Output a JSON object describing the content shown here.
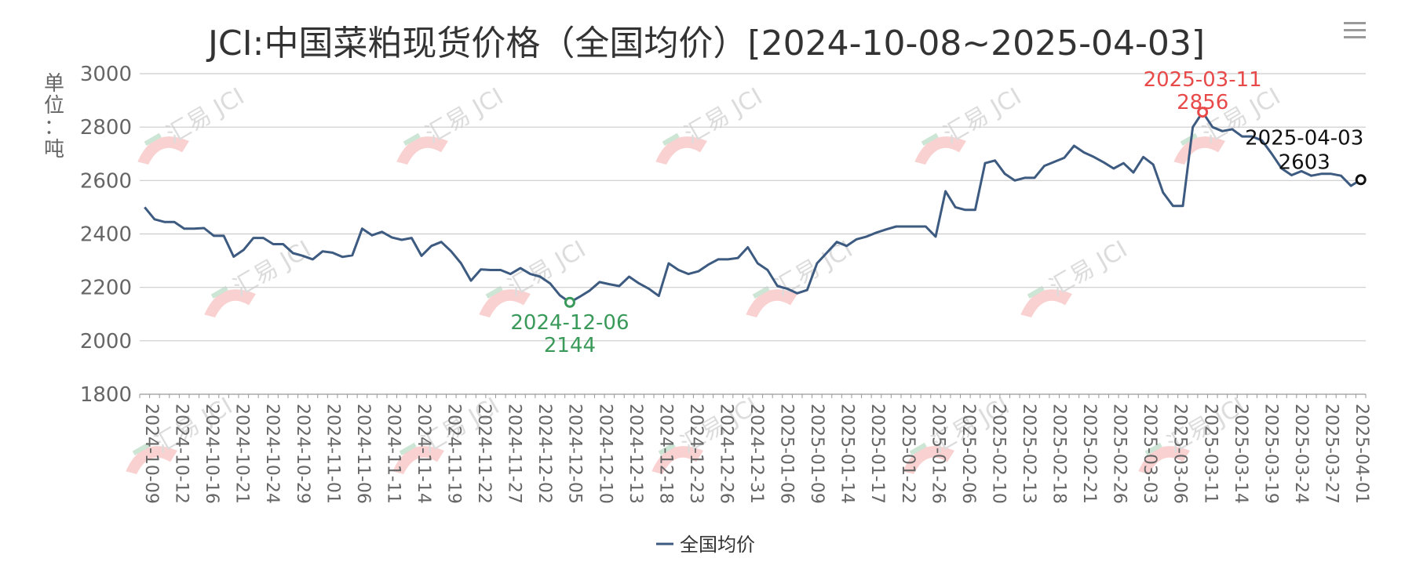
{
  "chart_data": {
    "type": "line",
    "title": "JCI:中国菜粕现货价格（全国均价）[2024-10-08~2025-04-03]",
    "ylabel": "单位：吨",
    "ylim": [
      1800,
      3000
    ],
    "yticks": [
      1800,
      2000,
      2200,
      2400,
      2600,
      2800,
      3000
    ],
    "grid": true,
    "legend_position": "bottom-center",
    "x_tick_labels": [
      "2024-10-09",
      "2024-10-12",
      "2024-10-16",
      "2024-10-21",
      "2024-10-24",
      "2024-10-29",
      "2024-11-01",
      "2024-11-06",
      "2024-11-11",
      "2024-11-14",
      "2024-11-19",
      "2024-11-22",
      "2024-11-27",
      "2024-12-02",
      "2024-12-05",
      "2024-12-10",
      "2024-12-13",
      "2024-12-18",
      "2024-12-23",
      "2024-12-26",
      "2024-12-31",
      "2025-01-06",
      "2025-01-09",
      "2025-01-14",
      "2025-01-17",
      "2025-01-22",
      "2025-01-26",
      "2025-02-06",
      "2025-02-10",
      "2025-02-13",
      "2025-02-18",
      "2025-02-21",
      "2025-02-26",
      "2025-03-03",
      "2025-03-06",
      "2025-03-11",
      "2025-03-14",
      "2025-03-19",
      "2025-03-24",
      "2025-03-27",
      "2025-04-01"
    ],
    "series": [
      {
        "name": "全国均价",
        "color": "#3d5a80",
        "values": [
          2500,
          2455,
          2445,
          2445,
          2420,
          2420,
          2422,
          2393,
          2393,
          2315,
          2340,
          2385,
          2385,
          2362,
          2362,
          2328,
          2318,
          2305,
          2335,
          2330,
          2314,
          2320,
          2420,
          2395,
          2408,
          2387,
          2378,
          2385,
          2318,
          2355,
          2370,
          2335,
          2290,
          2225,
          2267,
          2265,
          2265,
          2250,
          2272,
          2250,
          2240,
          2215,
          2170,
          2144,
          2165,
          2188,
          2220,
          2212,
          2205,
          2240,
          2215,
          2195,
          2168,
          2290,
          2265,
          2250,
          2260,
          2285,
          2305,
          2305,
          2310,
          2350,
          2290,
          2265,
          2205,
          2195,
          2178,
          2190,
          2290,
          2330,
          2370,
          2355,
          2380,
          2390,
          2405,
          2417,
          2428,
          2428,
          2428,
          2428,
          2390,
          2560,
          2500,
          2490,
          2490,
          2665,
          2675,
          2625,
          2600,
          2610,
          2610,
          2655,
          2670,
          2685,
          2730,
          2705,
          2688,
          2668,
          2645,
          2665,
          2630,
          2688,
          2660,
          2555,
          2505,
          2505,
          2800,
          2856,
          2800,
          2785,
          2792,
          2765,
          2765,
          2750,
          2700,
          2645,
          2620,
          2635,
          2618,
          2625,
          2625,
          2618,
          2580,
          2603
        ]
      }
    ],
    "annotations": [
      {
        "label": "2024-12-06",
        "value": "2144",
        "color": "#3a9a5a",
        "index": 43,
        "position": "below"
      },
      {
        "label": "2025-03-11",
        "value": "2856",
        "color": "#e84a4a",
        "index": 107,
        "position": "above"
      },
      {
        "label": "2025-04-03",
        "value": "2603",
        "color": "#111111",
        "index": 123,
        "position": "above-left"
      }
    ],
    "watermark_text": "汇易 JCI"
  }
}
